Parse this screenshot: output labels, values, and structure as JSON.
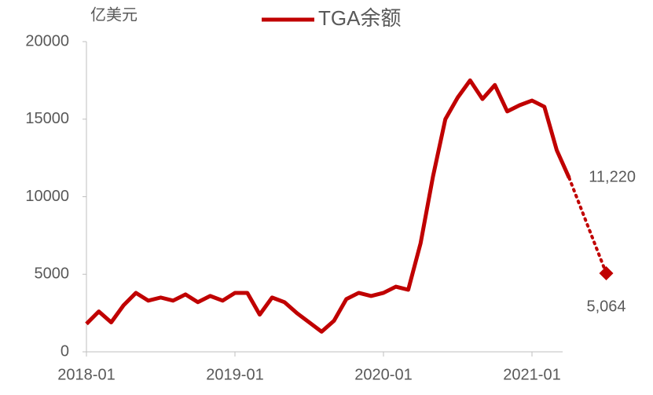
{
  "chart_data": {
    "type": "line",
    "y_unit": "亿美元",
    "x": [
      "2018-01",
      "2018-02",
      "2018-03",
      "2018-04",
      "2018-05",
      "2018-06",
      "2018-07",
      "2018-08",
      "2018-09",
      "2018-10",
      "2018-11",
      "2018-12",
      "2019-01",
      "2019-02",
      "2019-03",
      "2019-04",
      "2019-05",
      "2019-06",
      "2019-07",
      "2019-08",
      "2019-09",
      "2019-10",
      "2019-11",
      "2019-12",
      "2020-01",
      "2020-02",
      "2020-03",
      "2020-04",
      "2020-05",
      "2020-06",
      "2020-07",
      "2020-08",
      "2020-09",
      "2020-10",
      "2020-11",
      "2020-12",
      "2021-01",
      "2021-02",
      "2021-03",
      "2021-04"
    ],
    "series": [
      {
        "name": "TGA余额",
        "color": "#c00000",
        "values": [
          1800,
          2600,
          1900,
          3000,
          3800,
          3300,
          3500,
          3300,
          3700,
          3200,
          3600,
          3300,
          3800,
          3800,
          2400,
          3500,
          3200,
          2500,
          1900,
          1300,
          2000,
          3400,
          3800,
          3600,
          3800,
          4200,
          4000,
          7000,
          11300,
          15000,
          16400,
          17500,
          16300,
          17200,
          15500,
          15900,
          16200,
          15800,
          13000,
          11220
        ],
        "value_labels": {
          "39": "11,220"
        }
      }
    ],
    "forecast": {
      "x": [
        "2021-04",
        "2021-07"
      ],
      "values": [
        11220,
        5064
      ],
      "value_labels": [
        "11,220",
        "5,064"
      ]
    },
    "ylim": [
      0,
      20000
    ],
    "yticks": [
      0,
      5000,
      10000,
      15000,
      20000
    ],
    "xticks": [
      "2018-01",
      "2019-01",
      "2020-01",
      "2021-01"
    ],
    "grid": false
  }
}
